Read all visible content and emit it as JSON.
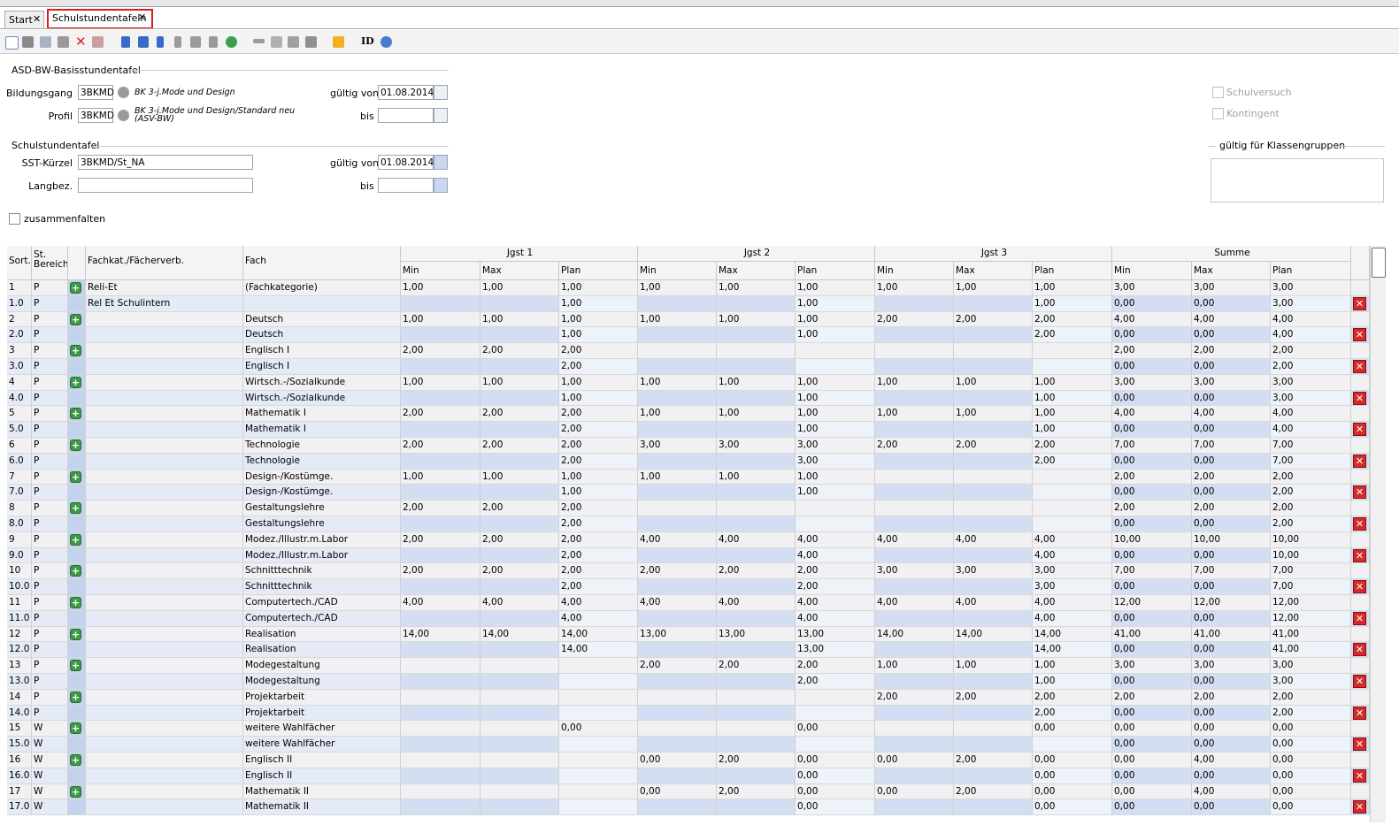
{
  "tabs": [
    "Start",
    "Schulstundentafeln"
  ],
  "toolbar": {
    "id_button": "ID"
  },
  "basis": {
    "title": "ASD-BW-Basisstundentafel",
    "bildungsgang_label": "Bildungsgang",
    "bildungsgang_code": "3BKMD",
    "bildungsgang_text": "BK 3-j.Mode und Design",
    "gueltig_von_label": "gültig von",
    "gueltig_von": "01.08.2014",
    "profil_label": "Profil",
    "profil_code": "3BKMD",
    "profil_text": "BK 3-j.Mode und Design/Standard neu (ASV-BW)",
    "bis_label": "bis"
  },
  "options": {
    "schulversuch": "Schulversuch",
    "kontingent": "Kontingent",
    "klassengruppen_title": "gültig für Klassengruppen"
  },
  "sst": {
    "title": "Schulstundentafel",
    "kuerzel_label": "SST-Kürzel",
    "kuerzel": "3BKMD/St_NA",
    "gueltig_von_label": "gültig von",
    "gueltig_von": "01.08.2014",
    "langbez_label": "Langbez.",
    "bis_label": "bis"
  },
  "collapse_label": "zusammenfalten",
  "table": {
    "columns": [
      "Sort.",
      "St. Bereich",
      "Fachkat./Fächerverb.",
      "Fach"
    ],
    "groups": [
      "Jgst 1",
      "Jgst 2",
      "Jgst 3",
      "Summe"
    ],
    "subcolumns": [
      "Min",
      "Max",
      "Plan"
    ],
    "rows": [
      [
        "1",
        "P",
        "Reli-Et",
        "(Fachkategorie)",
        "1,00",
        "1,00",
        "1,00",
        "1,00",
        "1,00",
        "1,00",
        "1,00",
        "1,00",
        "1,00",
        "3,00",
        "3,00",
        "3,00"
      ],
      [
        "1.0",
        "P",
        "Rel Et Schulintern",
        null,
        null,
        null,
        "1,00",
        null,
        null,
        "1,00",
        null,
        null,
        "1,00",
        "0,00",
        "0,00",
        "3,00"
      ],
      [
        "2",
        "P",
        null,
        "Deutsch",
        "1,00",
        "1,00",
        "1,00",
        "1,00",
        "1,00",
        "1,00",
        "2,00",
        "2,00",
        "2,00",
        "4,00",
        "4,00",
        "4,00"
      ],
      [
        "2.0",
        "P",
        null,
        "Deutsch",
        null,
        null,
        "1,00",
        null,
        null,
        "1,00",
        null,
        null,
        "2,00",
        "0,00",
        "0,00",
        "4,00"
      ],
      [
        "3",
        "P",
        null,
        "Englisch I",
        "2,00",
        "2,00",
        "2,00",
        null,
        null,
        null,
        null,
        null,
        null,
        "2,00",
        "2,00",
        "2,00"
      ],
      [
        "3.0",
        "P",
        null,
        "Englisch I",
        null,
        null,
        "2,00",
        null,
        null,
        null,
        null,
        null,
        null,
        "0,00",
        "0,00",
        "2,00"
      ],
      [
        "4",
        "P",
        null,
        "Wirtsch.-/Sozialkunde",
        "1,00",
        "1,00",
        "1,00",
        "1,00",
        "1,00",
        "1,00",
        "1,00",
        "1,00",
        "1,00",
        "3,00",
        "3,00",
        "3,00"
      ],
      [
        "4.0",
        "P",
        null,
        "Wirtsch.-/Sozialkunde",
        null,
        null,
        "1,00",
        null,
        null,
        "1,00",
        null,
        null,
        "1,00",
        "0,00",
        "0,00",
        "3,00"
      ],
      [
        "5",
        "P",
        null,
        "Mathematik I",
        "2,00",
        "2,00",
        "2,00",
        "1,00",
        "1,00",
        "1,00",
        "1,00",
        "1,00",
        "1,00",
        "4,00",
        "4,00",
        "4,00"
      ],
      [
        "5.0",
        "P",
        null,
        "Mathematik I",
        null,
        null,
        "2,00",
        null,
        null,
        "1,00",
        null,
        null,
        "1,00",
        "0,00",
        "0,00",
        "4,00"
      ],
      [
        "6",
        "P",
        null,
        "Technologie",
        "2,00",
        "2,00",
        "2,00",
        "3,00",
        "3,00",
        "3,00",
        "2,00",
        "2,00",
        "2,00",
        "7,00",
        "7,00",
        "7,00"
      ],
      [
        "6.0",
        "P",
        null,
        "Technologie",
        null,
        null,
        "2,00",
        null,
        null,
        "3,00",
        null,
        null,
        "2,00",
        "0,00",
        "0,00",
        "7,00"
      ],
      [
        "7",
        "P",
        null,
        "Design-/Kostümge.",
        "1,00",
        "1,00",
        "1,00",
        "1,00",
        "1,00",
        "1,00",
        null,
        null,
        null,
        "2,00",
        "2,00",
        "2,00"
      ],
      [
        "7.0",
        "P",
        null,
        "Design-/Kostümge.",
        null,
        null,
        "1,00",
        null,
        null,
        "1,00",
        null,
        null,
        null,
        "0,00",
        "0,00",
        "2,00"
      ],
      [
        "8",
        "P",
        null,
        "Gestaltungslehre",
        "2,00",
        "2,00",
        "2,00",
        null,
        null,
        null,
        null,
        null,
        null,
        "2,00",
        "2,00",
        "2,00"
      ],
      [
        "8.0",
        "P",
        null,
        "Gestaltungslehre",
        null,
        null,
        "2,00",
        null,
        null,
        null,
        null,
        null,
        null,
        "0,00",
        "0,00",
        "2,00"
      ],
      [
        "9",
        "P",
        null,
        "Modez./Illustr.m.Labor",
        "2,00",
        "2,00",
        "2,00",
        "4,00",
        "4,00",
        "4,00",
        "4,00",
        "4,00",
        "4,00",
        "10,00",
        "10,00",
        "10,00"
      ],
      [
        "9.0",
        "P",
        null,
        "Modez./Illustr.m.Labor",
        null,
        null,
        "2,00",
        null,
        null,
        "4,00",
        null,
        null,
        "4,00",
        "0,00",
        "0,00",
        "10,00"
      ],
      [
        "10",
        "P",
        null,
        "Schnitttechnik",
        "2,00",
        "2,00",
        "2,00",
        "2,00",
        "2,00",
        "2,00",
        "3,00",
        "3,00",
        "3,00",
        "7,00",
        "7,00",
        "7,00"
      ],
      [
        "10.0",
        "P",
        null,
        "Schnitttechnik",
        null,
        null,
        "2,00",
        null,
        null,
        "2,00",
        null,
        null,
        "3,00",
        "0,00",
        "0,00",
        "7,00"
      ],
      [
        "11",
        "P",
        null,
        "Computertech./CAD",
        "4,00",
        "4,00",
        "4,00",
        "4,00",
        "4,00",
        "4,00",
        "4,00",
        "4,00",
        "4,00",
        "12,00",
        "12,00",
        "12,00"
      ],
      [
        "11.0",
        "P",
        null,
        "Computertech./CAD",
        null,
        null,
        "4,00",
        null,
        null,
        "4,00",
        null,
        null,
        "4,00",
        "0,00",
        "0,00",
        "12,00"
      ],
      [
        "12",
        "P",
        null,
        "Realisation",
        "14,00",
        "14,00",
        "14,00",
        "13,00",
        "13,00",
        "13,00",
        "14,00",
        "14,00",
        "14,00",
        "41,00",
        "41,00",
        "41,00"
      ],
      [
        "12.0",
        "P",
        null,
        "Realisation",
        null,
        null,
        "14,00",
        null,
        null,
        "13,00",
        null,
        null,
        "14,00",
        "0,00",
        "0,00",
        "41,00"
      ],
      [
        "13",
        "P",
        null,
        "Modegestaltung",
        null,
        null,
        null,
        "2,00",
        "2,00",
        "2,00",
        "1,00",
        "1,00",
        "1,00",
        "3,00",
        "3,00",
        "3,00"
      ],
      [
        "13.0",
        "P",
        null,
        "Modegestaltung",
        null,
        null,
        null,
        null,
        null,
        "2,00",
        null,
        null,
        "1,00",
        "0,00",
        "0,00",
        "3,00"
      ],
      [
        "14",
        "P",
        null,
        "Projektarbeit",
        null,
        null,
        null,
        null,
        null,
        null,
        "2,00",
        "2,00",
        "2,00",
        "2,00",
        "2,00",
        "2,00"
      ],
      [
        "14.0",
        "P",
        null,
        "Projektarbeit",
        null,
        null,
        null,
        null,
        null,
        null,
        null,
        null,
        "2,00",
        "0,00",
        "0,00",
        "2,00"
      ],
      [
        "15",
        "W",
        null,
        "weitere  Wahlfächer",
        null,
        null,
        "0,00",
        null,
        null,
        "0,00",
        null,
        null,
        "0,00",
        "0,00",
        "0,00",
        "0,00"
      ],
      [
        "15.0",
        "W",
        null,
        "weitere  Wahlfächer",
        null,
        null,
        null,
        null,
        null,
        null,
        null,
        null,
        null,
        "0,00",
        "0,00",
        "0,00"
      ],
      [
        "16",
        "W",
        null,
        "Englisch II",
        null,
        null,
        null,
        "0,00",
        "2,00",
        "0,00",
        "0,00",
        "2,00",
        "0,00",
        "0,00",
        "4,00",
        "0,00"
      ],
      [
        "16.0",
        "W",
        null,
        "Englisch II",
        null,
        null,
        null,
        null,
        null,
        "0,00",
        null,
        null,
        "0,00",
        "0,00",
        "0,00",
        "0,00"
      ],
      [
        "17",
        "W",
        null,
        "Mathematik II",
        null,
        null,
        null,
        "0,00",
        "2,00",
        "0,00",
        "0,00",
        "2,00",
        "0,00",
        "0,00",
        "4,00",
        "0,00"
      ],
      [
        "17.0",
        "W",
        null,
        "Mathematik II",
        null,
        null,
        null,
        null,
        null,
        "0,00",
        null,
        null,
        "0,00",
        "0,00",
        "0,00",
        "0,00"
      ]
    ]
  }
}
